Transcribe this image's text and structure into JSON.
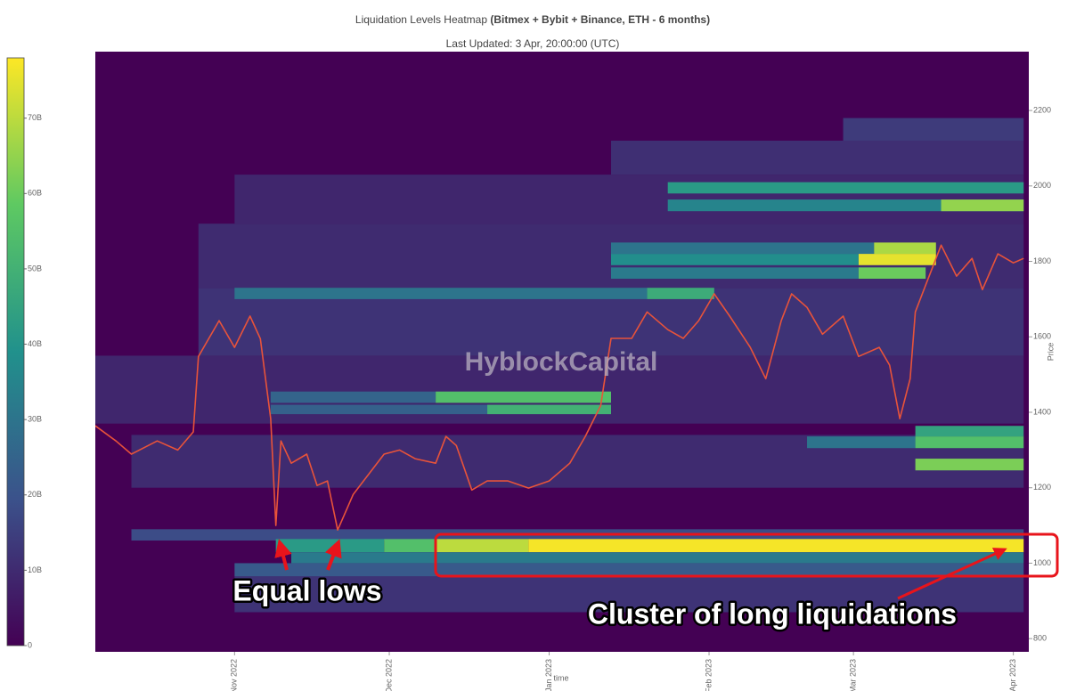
{
  "chart_data": {
    "type": "heatmap",
    "title": "Liquidation Levels Heatmap",
    "title_detail": "(Bitmex + Bybit + Binance, ETH - 6 months)",
    "subtitle": "Last Updated: 3 Apr, 20:00:00 (UTC)",
    "x_label": "time",
    "y_label": "Price",
    "watermark": "HyblockCapital",
    "annotations": [
      "Equal lows",
      "Cluster of long liquidations"
    ],
    "xlim": [
      "2022-10-05",
      "2023-04-04"
    ],
    "xticks": [
      {
        "value": "2022-11-01",
        "label": "Nov 2022"
      },
      {
        "value": "2022-12-01",
        "label": "Dec 2022"
      },
      {
        "value": "2023-01-01",
        "label": "Jan 2023"
      },
      {
        "value": "2023-02-01",
        "label": "Feb 2023"
      },
      {
        "value": "2023-03-01",
        "label": "Mar 2023"
      },
      {
        "value": "2023-04-01",
        "label": "Apr 2023"
      }
    ],
    "ylim": [
      765,
      2356
    ],
    "yticks": [
      800,
      1000,
      1200,
      1400,
      1600,
      1800,
      2000,
      2200
    ],
    "zlim": [
      0,
      78
    ],
    "zticks": [
      0,
      {
        "value": 10,
        "label": "10B"
      },
      {
        "value": 20,
        "label": "20B"
      },
      {
        "value": 30,
        "label": "30B"
      },
      {
        "value": 40,
        "label": "40B"
      },
      {
        "value": 50,
        "label": "50B"
      },
      {
        "value": 60,
        "label": "60B"
      },
      {
        "value": 70,
        "label": "70B"
      }
    ],
    "colorscale": [
      "#440154",
      "#3b528b",
      "#21918c",
      "#5ec962",
      "#fde725"
    ],
    "cells": [
      {
        "start": "2022-10-12",
        "end": "2023-04-03",
        "low": 1200,
        "high": 1340,
        "value": 10
      },
      {
        "start": "2022-10-25",
        "end": "2023-04-03",
        "low": 1550,
        "high": 1730,
        "value": 12
      },
      {
        "start": "2022-10-25",
        "end": "2023-04-03",
        "low": 1730,
        "high": 1900,
        "value": 10
      },
      {
        "start": "2022-11-01",
        "end": "2023-04-03",
        "low": 1900,
        "high": 2030,
        "value": 9
      },
      {
        "start": "2023-01-13",
        "end": "2023-04-03",
        "low": 2030,
        "high": 2120,
        "value": 11
      },
      {
        "start": "2023-02-27",
        "end": "2023-04-03",
        "low": 2120,
        "high": 2180,
        "value": 14
      },
      {
        "start": "2022-11-01",
        "end": "2023-04-03",
        "low": 870,
        "high": 965,
        "value": 12
      },
      {
        "start": "2022-10-05",
        "end": "2023-04-03",
        "low": 1370,
        "high": 1550,
        "value": 9
      },
      {
        "start": "2022-10-12",
        "end": "2023-04-03",
        "low": 1060,
        "high": 1090,
        "value": 18
      },
      {
        "start": "2022-11-09",
        "end": "2022-11-30",
        "low": 1029,
        "high": 1064,
        "value": 42
      },
      {
        "start": "2022-11-30",
        "end": "2022-12-10",
        "low": 1029,
        "high": 1064,
        "value": 55
      },
      {
        "start": "2022-12-10",
        "end": "2022-12-28",
        "low": 1029,
        "high": 1064,
        "value": 70
      },
      {
        "start": "2022-12-28",
        "end": "2023-04-03",
        "low": 1029,
        "high": 1064,
        "value": 77
      },
      {
        "start": "2022-11-12",
        "end": "2023-04-03",
        "low": 1000,
        "high": 1029,
        "value": 32
      },
      {
        "start": "2022-11-01",
        "end": "2023-04-03",
        "low": 965,
        "high": 1000,
        "value": 22
      },
      {
        "start": "2022-11-08",
        "end": "2022-12-10",
        "low": 1425,
        "high": 1455,
        "value": 25
      },
      {
        "start": "2022-12-10",
        "end": "2023-01-13",
        "low": 1425,
        "high": 1455,
        "value": 55
      },
      {
        "start": "2022-11-08",
        "end": "2022-12-20",
        "low": 1395,
        "high": 1420,
        "value": 24
      },
      {
        "start": "2022-12-20",
        "end": "2023-01-13",
        "low": 1395,
        "high": 1420,
        "value": 50
      },
      {
        "start": "2023-02-20",
        "end": "2023-03-13",
        "low": 1305,
        "high": 1336,
        "value": 30
      },
      {
        "start": "2023-03-13",
        "end": "2023-04-03",
        "low": 1305,
        "high": 1336,
        "value": 55
      },
      {
        "start": "2023-03-13",
        "end": "2023-04-03",
        "low": 1246,
        "high": 1277,
        "value": 62
      },
      {
        "start": "2023-03-13",
        "end": "2023-04-03",
        "low": 1336,
        "high": 1364,
        "value": 45
      },
      {
        "start": "2023-01-13",
        "end": "2023-03-02",
        "low": 1754,
        "high": 1784,
        "value": 32
      },
      {
        "start": "2023-03-02",
        "end": "2023-03-15",
        "low": 1754,
        "high": 1784,
        "value": 60
      },
      {
        "start": "2023-01-13",
        "end": "2023-03-02",
        "low": 1790,
        "high": 1820,
        "value": 38
      },
      {
        "start": "2023-03-02",
        "end": "2023-03-17",
        "low": 1790,
        "high": 1820,
        "value": 75
      },
      {
        "start": "2023-01-13",
        "end": "2023-03-05",
        "low": 1820,
        "high": 1850,
        "value": 30
      },
      {
        "start": "2023-03-05",
        "end": "2023-03-17",
        "low": 1820,
        "high": 1850,
        "value": 68
      },
      {
        "start": "2023-01-24",
        "end": "2023-04-03",
        "low": 1933,
        "high": 1964,
        "value": 35
      },
      {
        "start": "2023-03-18",
        "end": "2023-04-03",
        "low": 1933,
        "high": 1964,
        "value": 65
      },
      {
        "start": "2023-01-24",
        "end": "2023-04-03",
        "low": 1980,
        "high": 2010,
        "value": 42
      },
      {
        "start": "2022-11-01",
        "end": "2023-01-20",
        "low": 1700,
        "high": 1730,
        "value": 30
      },
      {
        "start": "2023-01-20",
        "end": "2023-02-02",
        "low": 1700,
        "high": 1730,
        "value": 48
      }
    ],
    "price": {
      "color": "#e8533a",
      "x": [
        "2022-10-05",
        "2022-10-09",
        "2022-10-12",
        "2022-10-17",
        "2022-10-21",
        "2022-10-24",
        "2022-10-25",
        "2022-10-29",
        "2022-11-01",
        "2022-11-04",
        "2022-11-06",
        "2022-11-08",
        "2022-11-09",
        "2022-11-10",
        "2022-11-12",
        "2022-11-15",
        "2022-11-17",
        "2022-11-19",
        "2022-11-21",
        "2022-11-24",
        "2022-11-26",
        "2022-11-30",
        "2022-12-03",
        "2022-12-06",
        "2022-12-10",
        "2022-12-12",
        "2022-12-14",
        "2022-12-17",
        "2022-12-20",
        "2022-12-24",
        "2022-12-28",
        "2023-01-01",
        "2023-01-05",
        "2023-01-08",
        "2023-01-11",
        "2023-01-13",
        "2023-01-17",
        "2023-01-20",
        "2023-01-24",
        "2023-01-27",
        "2023-01-30",
        "2023-02-02",
        "2023-02-05",
        "2023-02-09",
        "2023-02-12",
        "2023-02-15",
        "2023-02-17",
        "2023-02-20",
        "2023-02-23",
        "2023-02-27",
        "2023-03-02",
        "2023-03-06",
        "2023-03-08",
        "2023-03-10",
        "2023-03-12",
        "2023-03-13",
        "2023-03-15",
        "2023-03-18",
        "2023-03-21",
        "2023-03-24",
        "2023-03-26",
        "2023-03-29",
        "2023-04-01",
        "2023-04-03"
      ],
      "values": [
        1364,
        1324,
        1289,
        1324,
        1300,
        1348,
        1548,
        1643,
        1572,
        1655,
        1595,
        1383,
        1100,
        1324,
        1265,
        1289,
        1206,
        1218,
        1088,
        1182,
        1218,
        1289,
        1300,
        1277,
        1265,
        1336,
        1312,
        1194,
        1218,
        1218,
        1199,
        1218,
        1265,
        1336,
        1418,
        1596,
        1596,
        1666,
        1619,
        1596,
        1643,
        1714,
        1655,
        1572,
        1489,
        1643,
        1714,
        1678,
        1607,
        1655,
        1548,
        1572,
        1525,
        1383,
        1489,
        1666,
        1737,
        1843,
        1761,
        1808,
        1725,
        1820,
        1796,
        1808
      ]
    }
  }
}
